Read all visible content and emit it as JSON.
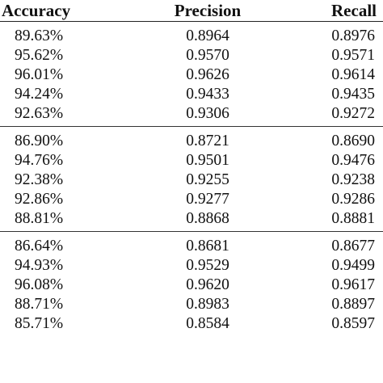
{
  "table": {
    "headers": {
      "accuracy": "Accuracy",
      "precision": "Precision",
      "recall": "Recall"
    },
    "groups": [
      {
        "rows": [
          {
            "accuracy": "89.63%",
            "precision": "0.8964",
            "recall": "0.8976"
          },
          {
            "accuracy": "95.62%",
            "precision": "0.9570",
            "recall": "0.9571"
          },
          {
            "accuracy": "96.01%",
            "precision": "0.9626",
            "recall": "0.9614"
          },
          {
            "accuracy": "94.24%",
            "precision": "0.9433",
            "recall": "0.9435"
          },
          {
            "accuracy": "92.63%",
            "precision": "0.9306",
            "recall": "0.9272"
          }
        ]
      },
      {
        "rows": [
          {
            "accuracy": "86.90%",
            "precision": "0.8721",
            "recall": "0.8690"
          },
          {
            "accuracy": "94.76%",
            "precision": "0.9501",
            "recall": "0.9476"
          },
          {
            "accuracy": "92.38%",
            "precision": "0.9255",
            "recall": "0.9238"
          },
          {
            "accuracy": "92.86%",
            "precision": "0.9277",
            "recall": "0.9286"
          },
          {
            "accuracy": "88.81%",
            "precision": "0.8868",
            "recall": "0.8881"
          }
        ]
      },
      {
        "rows": [
          {
            "accuracy": "86.64%",
            "precision": "0.8681",
            "recall": "0.8677"
          },
          {
            "accuracy": "94.93%",
            "precision": "0.9529",
            "recall": "0.9499"
          },
          {
            "accuracy": "96.08%",
            "precision": "0.9620",
            "recall": "0.9617"
          },
          {
            "accuracy": "88.71%",
            "precision": "0.8983",
            "recall": "0.8897"
          },
          {
            "accuracy": "85.71%",
            "precision": "0.8584",
            "recall": "0.8597"
          }
        ]
      }
    ]
  }
}
